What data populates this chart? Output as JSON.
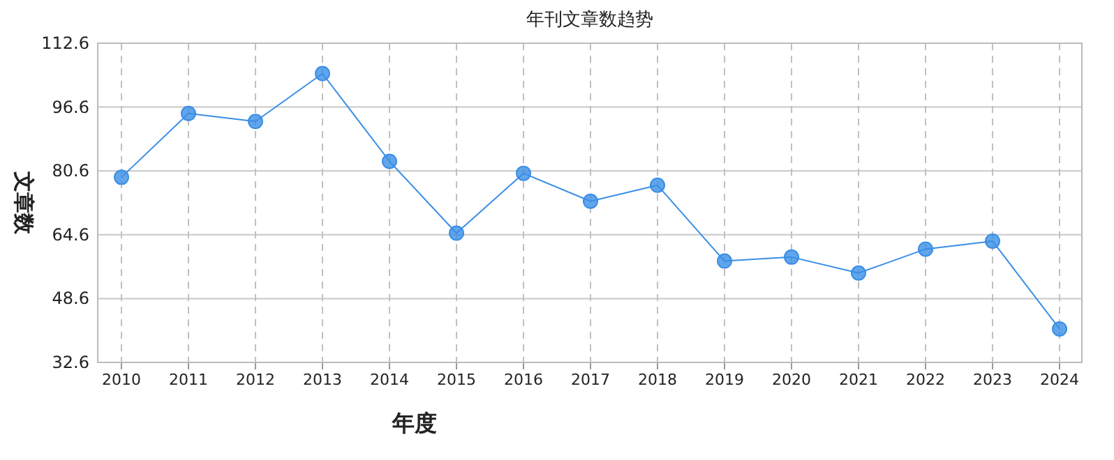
{
  "chart_data": {
    "type": "line",
    "title": "年刊文章数趋势",
    "xlabel": "年度",
    "ylabel": "文章数",
    "categories": [
      "2010",
      "2011",
      "2012",
      "2013",
      "2014",
      "2015",
      "2016",
      "2017",
      "2018",
      "2019",
      "2020",
      "2021",
      "2022",
      "2023",
      "2024"
    ],
    "series": [
      {
        "color": "#3a8ee6",
        "values": [
          79,
          95,
          93,
          105,
          83,
          65,
          80,
          73,
          77,
          58,
          59,
          55,
          61,
          63,
          41
        ]
      }
    ],
    "ylim": [
      32.6,
      112.6
    ],
    "yticks": [
      32.6,
      48.6,
      64.6,
      80.6,
      96.6,
      112.6
    ],
    "grid": true,
    "marker": "circle",
    "line_style": "solid"
  }
}
